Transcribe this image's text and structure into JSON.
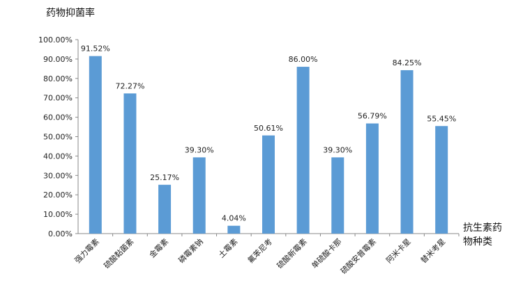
{
  "chart_data": {
    "type": "bar",
    "ylabel": "药物抑菌率",
    "xlabel_line1": "抗生素药",
    "xlabel_line2": "物种类",
    "categories": [
      "强力霉素",
      "硫酸黏菌素",
      "金霉素",
      "磷霉素钠",
      "土霉素",
      "氟苯尼考",
      "硫酸新霉素",
      "单硫酸卡那",
      "硫酸安普霉素",
      "阿米卡星",
      "替米考星"
    ],
    "values": [
      91.52,
      72.27,
      25.17,
      39.3,
      4.04,
      50.61,
      86.0,
      39.3,
      56.79,
      84.25,
      55.45
    ],
    "data_labels": [
      "91.52%",
      "72.27%",
      "25.17%",
      "39.30%",
      "4.04%",
      "50.61%",
      "86.00%",
      "39.30%",
      "56.79%",
      "84.25%",
      "55.45%"
    ],
    "yticks": [
      "0.00%",
      "10.00%",
      "20.00%",
      "30.00%",
      "40.00%",
      "50.00%",
      "60.00%",
      "70.00%",
      "80.00%",
      "90.00%",
      "100.00%"
    ],
    "ylim": [
      0,
      100
    ],
    "grid": false,
    "legend": "none",
    "bar_color": "#5b9bd5"
  }
}
